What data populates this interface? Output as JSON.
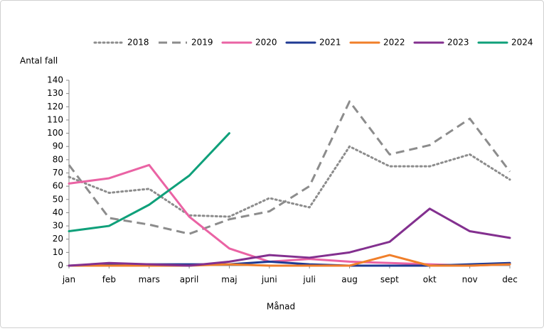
{
  "chart_data": {
    "type": "line",
    "ylabel": "Antal fall",
    "xlabel": "Månad",
    "categories": [
      "jan",
      "feb",
      "mars",
      "april",
      "maj",
      "juni",
      "juli",
      "aug",
      "sept",
      "okt",
      "nov",
      "dec"
    ],
    "series": [
      {
        "name": "2018",
        "color": "#8c8c8c",
        "dash": "dotted",
        "values": [
          67,
          55,
          58,
          38,
          37,
          51,
          44,
          90,
          75,
          75,
          84,
          65
        ]
      },
      {
        "name": "2019",
        "color": "#8c8c8c",
        "dash": "dashed",
        "values": [
          76,
          36,
          31,
          24,
          35,
          41,
          60,
          124,
          84,
          91,
          111,
          71
        ]
      },
      {
        "name": "2020",
        "color": "#ea63a4",
        "dash": "solid",
        "values": [
          62,
          66,
          76,
          37,
          13,
          3,
          5,
          3,
          2,
          1,
          0,
          1
        ]
      },
      {
        "name": "2021",
        "color": "#1f3a93",
        "dash": "solid",
        "values": [
          0,
          1,
          1,
          1,
          1,
          3,
          1,
          0,
          0,
          0,
          1,
          2
        ]
      },
      {
        "name": "2022",
        "color": "#f07f2a",
        "dash": "solid",
        "values": [
          0,
          0,
          0,
          0,
          1,
          0,
          0,
          0,
          8,
          0,
          0,
          1
        ]
      },
      {
        "name": "2023",
        "color": "#83308f",
        "dash": "solid",
        "values": [
          0,
          2,
          1,
          0,
          3,
          8,
          6,
          10,
          18,
          43,
          26,
          21
        ]
      },
      {
        "name": "2024",
        "color": "#0fa07a",
        "dash": "solid",
        "values": [
          26,
          30,
          46,
          68,
          100,
          null,
          null,
          null,
          null,
          null,
          null,
          null
        ]
      }
    ],
    "ylim": [
      0,
      140
    ],
    "yticks": [
      0,
      10,
      20,
      30,
      40,
      50,
      60,
      70,
      80,
      90,
      100,
      110,
      120,
      130,
      140
    ],
    "grid": false,
    "legend": "top"
  }
}
